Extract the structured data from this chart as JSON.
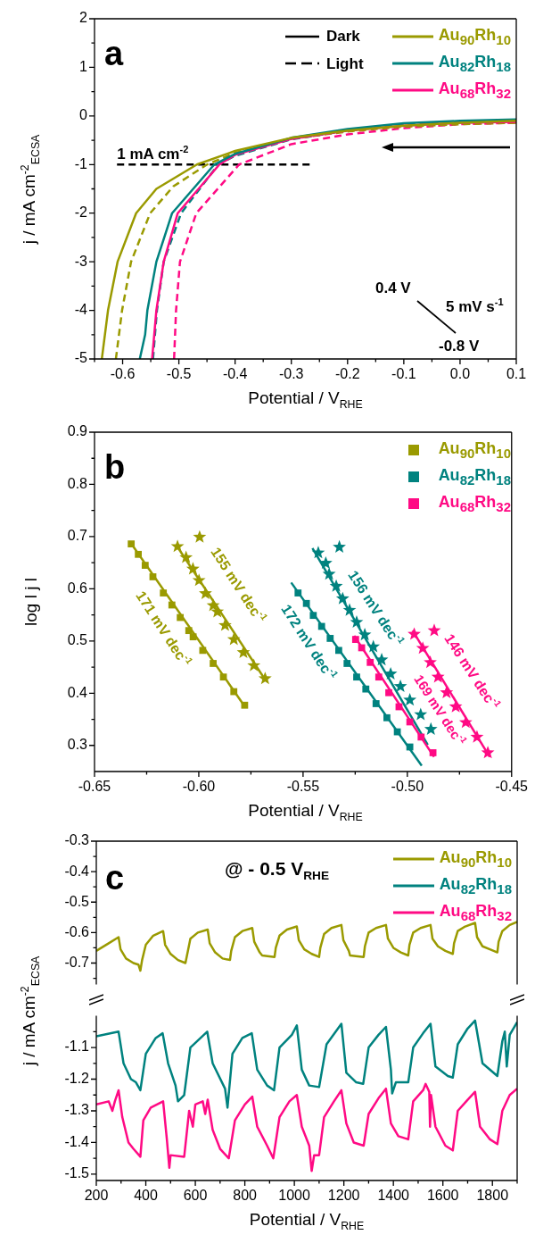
{
  "chart_data": [
    {
      "type": "line",
      "xlabel": "Potential / V$_{RHE}$",
      "ylabel": "j / mA cm$^{-2}$$_{ECSA}$",
      "legend": "top right",
      "xlim": [
        -0.65,
        0.1
      ],
      "ylim": [
        -5,
        2
      ],
      "xticks": [
        {
          "value": -0.65,
          "label": null
        },
        -0.6,
        {
          "value": -0.55,
          "label": null
        },
        -0.5,
        {
          "value": -0.45,
          "label": null
        },
        -0.4,
        {
          "value": -0.35,
          "label": null
        },
        -0.3,
        {
          "value": -0.25,
          "label": null
        },
        -0.2,
        {
          "value": -0.15,
          "label": null
        },
        -0.1,
        {
          "value": -0.05,
          "label": null
        },
        {
          "value": 0,
          "label": "0.0"
        },
        {
          "value": 0.05,
          "label": null
        },
        0.1
      ],
      "yticks": [
        -5,
        {
          "value": -4.5,
          "label": null
        },
        -4,
        {
          "value": -3.5,
          "label": null
        },
        -3,
        {
          "value": -2.5,
          "label": null
        },
        -2,
        {
          "value": -1.5,
          "label": null
        },
        -1,
        {
          "value": -0.5,
          "label": null
        },
        0,
        {
          "value": 0.5,
          "label": null
        },
        1,
        {
          "value": 1.5,
          "label": null
        },
        2
      ],
      "annotations": [
        "a",
        "Dark",
        "Light",
        "0.4 V",
        "5 mV s$^{-1}$",
        "-0.8 V",
        {
          "text": "1 mA cm$^{-2}$",
          "x": -0.61,
          "y": -1
        }
      ],
      "series": [
        {
          "name": "Au$_{90}$Rh$_{10}$",
          "color": "#9a9a00",
          "line_style": "solid",
          "x": [
            -0.637,
            -0.626,
            -0.609,
            -0.576,
            -0.54,
            -0.468,
            -0.4,
            -0.3,
            -0.2,
            -0.1,
            0,
            0.1
          ],
          "values": [
            -5,
            -4,
            -3,
            -2,
            -1.5,
            -1,
            -0.72,
            -0.45,
            -0.3,
            -0.2,
            -0.14,
            -0.1
          ]
        },
        {
          "name": "Au$_{82}$Rh$_{18}$",
          "color": "#00827f",
          "line_style": "solid",
          "x": [
            -0.5695,
            -0.56,
            -0.556,
            -0.54,
            -0.512,
            -0.437,
            -0.4,
            -0.3,
            -0.2,
            -0.1,
            0,
            0.1
          ],
          "values": [
            -5,
            -4.5,
            -4,
            -3,
            -2,
            -1,
            -0.78,
            -0.45,
            -0.27,
            -0.15,
            -0.1,
            -0.07
          ]
        },
        {
          "name": "Au$_{68}$Rh$_{32}$",
          "color": "#ff0a84",
          "line_style": "solid",
          "x": [
            -0.5476,
            -0.54,
            -0.527,
            -0.502,
            -0.428,
            -0.4,
            -0.3,
            -0.2,
            -0.1,
            0,
            0.1
          ],
          "values": [
            -5,
            -4,
            -3,
            -2,
            -1,
            -0.8,
            -0.47,
            -0.3,
            -0.2,
            -0.14,
            -0.12
          ]
        },
        {
          "color": "#9a9a00",
          "line_style": "dashed",
          "x": [
            -0.612,
            -0.601,
            -0.585,
            -0.551,
            -0.51,
            -0.45,
            -0.4,
            -0.3,
            -0.2,
            -0.1,
            0,
            0.1
          ],
          "values": [
            -5,
            -4,
            -3,
            -2,
            -1.45,
            -1,
            -0.76,
            -0.47,
            -0.32,
            -0.22,
            -0.17,
            -0.14
          ]
        },
        {
          "color": "#00827f",
          "line_style": "dashed",
          "x": [
            -0.546,
            -0.539,
            -0.527,
            -0.496,
            -0.43,
            -0.4,
            -0.3,
            -0.2,
            -0.1,
            0,
            0.1
          ],
          "values": [
            -5,
            -4,
            -3,
            -2,
            -1,
            -0.82,
            -0.48,
            -0.3,
            -0.17,
            -0.12,
            -0.09
          ]
        },
        {
          "color": "#ff0a84",
          "line_style": "dashed",
          "x": [
            -0.5085,
            -0.505,
            -0.498,
            -0.469,
            -0.393,
            -0.3,
            -0.2,
            -0.1,
            0,
            0.1
          ],
          "values": [
            -5,
            -4,
            -3,
            -2,
            -1,
            -0.58,
            -0.38,
            -0.25,
            -0.17,
            -0.14
          ]
        },
        {
          "color": "#000000",
          "line_style": "dashed",
          "x": [
            -0.61,
            -0.265
          ],
          "values": [
            -1,
            -1
          ]
        }
      ]
    },
    {
      "type": "scatter",
      "xlabel": "Potential / V$_{RHE}$",
      "ylabel": "log l j l",
      "legend": "top right",
      "xlim": [
        -0.65,
        -0.45
      ],
      "ylim": [
        0.25,
        0.9
      ],
      "xticks": [
        {
          "value": -0.65,
          "label": "-0.65"
        },
        {
          "value": -0.625,
          "label": null
        },
        {
          "value": -0.6,
          "label": "-0.60"
        },
        {
          "value": -0.575,
          "label": null
        },
        -0.55,
        {
          "value": -0.525,
          "label": null
        },
        {
          "value": -0.5,
          "label": "-0.50"
        },
        {
          "value": -0.475,
          "label": null
        },
        -0.45
      ],
      "yticks": [
        0.3,
        {
          "value": 0.35,
          "label": null
        },
        0.4,
        {
          "value": 0.45,
          "label": null
        },
        0.5,
        {
          "value": 0.55,
          "label": null
        },
        0.6,
        {
          "value": 0.65,
          "label": null
        },
        0.7,
        {
          "value": 0.75,
          "label": null
        },
        0.8,
        {
          "value": 0.85,
          "label": null
        },
        0.9
      ],
      "annotations": [
        "b",
        "155 mV dec$^{-1}$",
        "171 mV dec$^{-1}$",
        "172 mV dec$^{-1}$",
        "156 mV dec$^{-1}$",
        "146 mV dec$^{-1}$",
        "169 mV dec$^{-1}$"
      ],
      "series": [
        {
          "name": "Au$_{90}$Rh$_{10}$",
          "color": "#9a9a00",
          "marker": "square",
          "x": [
            -0.6324,
            -0.629,
            -0.6257,
            -0.622,
            -0.617,
            -0.6129,
            -0.6089,
            -0.6048,
            -0.6027,
            -0.5981,
            -0.5931,
            -0.5882,
            -0.5832,
            -0.578
          ],
          "values": [
            0.686,
            0.666,
            0.645,
            0.623,
            0.592,
            0.569,
            0.545,
            0.52,
            0.508,
            0.482,
            0.457,
            0.431,
            0.403,
            0.377
          ]
        },
        {
          "name": "Au$_{82}$Rh$_{18}$",
          "color": "#00827f",
          "marker": "square",
          "x": [
            -0.5524,
            -0.5484,
            -0.5451,
            -0.5411,
            -0.537,
            -0.5329,
            -0.5289,
            -0.5243,
            -0.5199,
            -0.515,
            -0.5098,
            -0.5048,
            -0.4988
          ],
          "values": [
            0.592,
            0.572,
            0.549,
            0.528,
            0.505,
            0.482,
            0.457,
            0.431,
            0.408,
            0.38,
            0.353,
            0.326,
            0.297
          ]
        },
        {
          "name": "Au$_{68}$Rh$_{32}$",
          "color": "#ff0a84",
          "marker": "square",
          "x": [
            -0.5248,
            -0.5219,
            -0.5178,
            -0.5137,
            -0.5089,
            -0.504,
            -0.4988,
            -0.4934,
            -0.4877
          ],
          "values": [
            0.503,
            0.487,
            0.459,
            0.431,
            0.401,
            0.374,
            0.345,
            0.316,
            0.286
          ]
        },
        {
          "color": "#9a9a00",
          "marker": "star",
          "x": [
            -0.6102,
            -0.6061,
            -0.6028,
            -0.5999,
            -0.5968,
            -0.5931,
            -0.5911,
            -0.5874,
            -0.5832,
            -0.5786,
            -0.5736,
            -0.5682,
            -0.5996
          ],
          "values": [
            0.681,
            0.66,
            0.638,
            0.616,
            0.591,
            0.568,
            0.556,
            0.53,
            0.503,
            0.478,
            0.453,
            0.428,
            0.699
          ]
        },
        {
          "color": "#00827f",
          "marker": "star",
          "x": [
            -0.5427,
            -0.5391,
            -0.5375,
            -0.5341,
            -0.531,
            -0.5277,
            -0.5243,
            -0.5204,
            -0.5163,
            -0.5123,
            -0.508,
            -0.5033,
            -0.4988,
            -0.4936,
            -0.4887,
            -0.5326
          ],
          "values": [
            0.669,
            0.649,
            0.628,
            0.605,
            0.581,
            0.559,
            0.536,
            0.512,
            0.489,
            0.464,
            0.437,
            0.413,
            0.387,
            0.359,
            0.331,
            0.68
          ]
        },
        {
          "color": "#ff0a84",
          "marker": "star",
          "x": [
            -0.4967,
            -0.4926,
            -0.489,
            -0.4853,
            -0.4812,
            -0.4768,
            -0.472,
            -0.4666,
            -0.4614,
            -0.4871
          ],
          "values": [
            0.513,
            0.486,
            0.459,
            0.431,
            0.401,
            0.374,
            0.344,
            0.316,
            0.286,
            0.52
          ]
        },
        {
          "type": "line",
          "color": "#9a9a00",
          "marker": "none",
          "x": [
            -0.633,
            -0.578
          ],
          "values": [
            0.69,
            0.375
          ]
        },
        {
          "type": "line",
          "color": "#00827f",
          "marker": "none",
          "x": [
            -0.5557,
            -0.4931
          ],
          "values": [
            0.612,
            0.261
          ]
        },
        {
          "type": "line",
          "color": "#ff0a84",
          "marker": "none",
          "x": [
            -0.5255,
            -0.4872
          ],
          "values": [
            0.51,
            0.278
          ]
        },
        {
          "type": "line",
          "color": "#9a9a00",
          "marker": "none",
          "x": [
            -0.611,
            -0.568
          ],
          "values": [
            0.685,
            0.425
          ]
        },
        {
          "type": "line",
          "color": "#00827f",
          "marker": "none",
          "x": [
            -0.5455,
            -0.4902
          ],
          "values": [
            0.678,
            0.301
          ]
        },
        {
          "type": "line",
          "color": "#ff0a84",
          "marker": "none",
          "x": [
            -0.4975,
            -0.4605
          ],
          "values": [
            0.52,
            0.278
          ]
        }
      ]
    },
    {
      "type": "line",
      "ylabel": "j / mA cm$^{-2}$$_{ECSA}$",
      "legend": "top right",
      "tick_labels": "y",
      "xlim": [
        200,
        1900
      ],
      "ylim": [
        -0.77,
        -0.3
      ],
      "yticks": [
        -0.3,
        {
          "value": -0.35,
          "label": null
        },
        -0.4,
        {
          "value": -0.45,
          "label": null
        },
        -0.5,
        {
          "value": -0.55,
          "label": null
        },
        -0.6,
        {
          "value": -0.65,
          "label": null
        },
        -0.7,
        {
          "value": -0.75,
          "label": null
        }
      ],
      "annotations": [
        "c",
        "@ - 0.5 V$_{RHE}$"
      ],
      "series": [
        {
          "name": "Au$_{90}$Rh$_{10}$",
          "color": "#9a9a00",
          "x": [
            200,
            210,
            250,
            290,
            298,
            320,
            350,
            370,
            378,
            385,
            400,
            430,
            470,
            478,
            500,
            530,
            560,
            565,
            580,
            610,
            650,
            658,
            680,
            710,
            740,
            745,
            760,
            790,
            830,
            838,
            860,
            870,
            920,
            925,
            940,
            970,
            1010,
            1018,
            1040,
            1070,
            1100,
            1105,
            1120,
            1150,
            1190,
            1198,
            1220,
            1225,
            1280,
            1285,
            1300,
            1330,
            1370,
            1378,
            1400,
            1430,
            1460,
            1465,
            1480,
            1510,
            1550,
            1558,
            1580,
            1610,
            1640,
            1645,
            1660,
            1690,
            1730,
            1738,
            1760,
            1790,
            1820,
            1825,
            1840,
            1870,
            1900
          ],
          "values": [
            -0.66,
            -0.655,
            -0.635,
            -0.615,
            -0.655,
            -0.685,
            -0.7,
            -0.705,
            -0.725,
            -0.69,
            -0.64,
            -0.61,
            -0.595,
            -0.64,
            -0.67,
            -0.69,
            -0.7,
            -0.68,
            -0.62,
            -0.6,
            -0.59,
            -0.635,
            -0.665,
            -0.685,
            -0.69,
            -0.66,
            -0.615,
            -0.595,
            -0.585,
            -0.63,
            -0.665,
            -0.675,
            -0.68,
            -0.65,
            -0.61,
            -0.59,
            -0.58,
            -0.625,
            -0.655,
            -0.67,
            -0.68,
            -0.65,
            -0.605,
            -0.585,
            -0.575,
            -0.625,
            -0.66,
            -0.675,
            -0.68,
            -0.645,
            -0.6,
            -0.585,
            -0.575,
            -0.62,
            -0.65,
            -0.665,
            -0.675,
            -0.64,
            -0.6,
            -0.585,
            -0.575,
            -0.62,
            -0.645,
            -0.66,
            -0.67,
            -0.635,
            -0.595,
            -0.58,
            -0.568,
            -0.615,
            -0.645,
            -0.655,
            -0.665,
            -0.63,
            -0.595,
            -0.575,
            -0.565
          ]
        }
      ]
    },
    {
      "type": "line",
      "xlabel": "Potential / V$_{RHE}$",
      "legend": "top right",
      "xlim": [
        200,
        1900
      ],
      "ylim": [
        -1.52,
        -1.0
      ],
      "xticks": [
        200,
        {
          "value": 300,
          "label": null
        },
        400,
        {
          "value": 500,
          "label": null
        },
        600,
        {
          "value": 700,
          "label": null
        },
        800,
        {
          "value": 900,
          "label": null
        },
        1000,
        {
          "value": 1100,
          "label": null
        },
        1200,
        {
          "value": 1300,
          "label": null
        },
        1400,
        {
          "value": 1500,
          "label": null
        },
        1600,
        {
          "value": 1700,
          "label": null
        },
        1800,
        {
          "value": 1900,
          "label": null
        }
      ],
      "yticks": [
        {
          "value": -1.05,
          "label": null
        },
        -1.1,
        {
          "value": -1.15,
          "label": null
        },
        -1.2,
        {
          "value": -1.25,
          "label": null
        },
        -1.3,
        {
          "value": -1.35,
          "label": null
        },
        -1.4,
        {
          "value": -1.45,
          "label": null
        },
        -1.5
      ],
      "series": [
        {
          "name": "Au$_{82}$Rh$_{18}$",
          "color": "#00827f",
          "x": [
            200,
            290,
            310,
            340,
            360,
            378,
            400,
            440,
            468,
            490,
            520,
            530,
            555,
            580,
            648,
            670,
            720,
            730,
            750,
            790,
            828,
            850,
            890,
            918,
            940,
            990,
            1010,
            1030,
            1060,
            1100,
            1130,
            1190,
            1210,
            1250,
            1278,
            1300,
            1340,
            1370,
            1390,
            1395,
            1410,
            1460,
            1480,
            1520,
            1550,
            1570,
            1620,
            1640,
            1660,
            1700,
            1730,
            1760,
            1820,
            1840,
            1850,
            1858,
            1870,
            1900
          ],
          "values": [
            -1.065,
            -1.05,
            -1.15,
            -1.2,
            -1.21,
            -1.235,
            -1.12,
            -1.07,
            -1.055,
            -1.15,
            -1.22,
            -1.27,
            -1.25,
            -1.1,
            -1.05,
            -1.15,
            -1.23,
            -1.29,
            -1.12,
            -1.07,
            -1.055,
            -1.17,
            -1.22,
            -1.235,
            -1.1,
            -1.06,
            -1.03,
            -1.17,
            -1.22,
            -1.225,
            -1.09,
            -1.025,
            -1.18,
            -1.21,
            -1.215,
            -1.1,
            -1.06,
            -1.035,
            -1.17,
            -1.245,
            -1.21,
            -1.21,
            -1.1,
            -1.055,
            -1.025,
            -1.16,
            -1.19,
            -1.195,
            -1.09,
            -1.04,
            -1.015,
            -1.15,
            -1.19,
            -1.08,
            -1.05,
            -1.16,
            -1.06,
            -1.02
          ]
        },
        {
          "name": "Au$_{68}$Rh$_{32}$",
          "color": "#ff0a84",
          "x": [
            200,
            250,
            265,
            275,
            290,
            305,
            330,
            350,
            378,
            390,
            420,
            470,
            485,
            495,
            500,
            555,
            575,
            590,
            600,
            630,
            640,
            650,
            670,
            700,
            735,
            760,
            800,
            830,
            850,
            890,
            915,
            940,
            980,
            1010,
            1030,
            1060,
            1070,
            1080,
            1100,
            1120,
            1160,
            1190,
            1210,
            1240,
            1280,
            1300,
            1340,
            1370,
            1390,
            1420,
            1460,
            1480,
            1520,
            1530,
            1545,
            1548,
            1552,
            1570,
            1610,
            1640,
            1660,
            1700,
            1730,
            1750,
            1790,
            1820,
            1840,
            1870,
            1900
          ],
          "values": [
            -1.28,
            -1.27,
            -1.3,
            -1.27,
            -1.235,
            -1.32,
            -1.4,
            -1.42,
            -1.445,
            -1.33,
            -1.29,
            -1.27,
            -1.39,
            -1.48,
            -1.44,
            -1.445,
            -1.3,
            -1.35,
            -1.28,
            -1.27,
            -1.31,
            -1.265,
            -1.36,
            -1.42,
            -1.45,
            -1.33,
            -1.28,
            -1.255,
            -1.35,
            -1.41,
            -1.45,
            -1.32,
            -1.27,
            -1.25,
            -1.35,
            -1.41,
            -1.49,
            -1.44,
            -1.44,
            -1.32,
            -1.27,
            -1.235,
            -1.34,
            -1.4,
            -1.41,
            -1.31,
            -1.26,
            -1.23,
            -1.34,
            -1.38,
            -1.39,
            -1.27,
            -1.235,
            -1.215,
            -1.24,
            -1.35,
            -1.25,
            -1.35,
            -1.41,
            -1.425,
            -1.3,
            -1.265,
            -1.24,
            -1.35,
            -1.39,
            -1.405,
            -1.3,
            -1.25,
            -1.23
          ]
        }
      ]
    }
  ]
}
